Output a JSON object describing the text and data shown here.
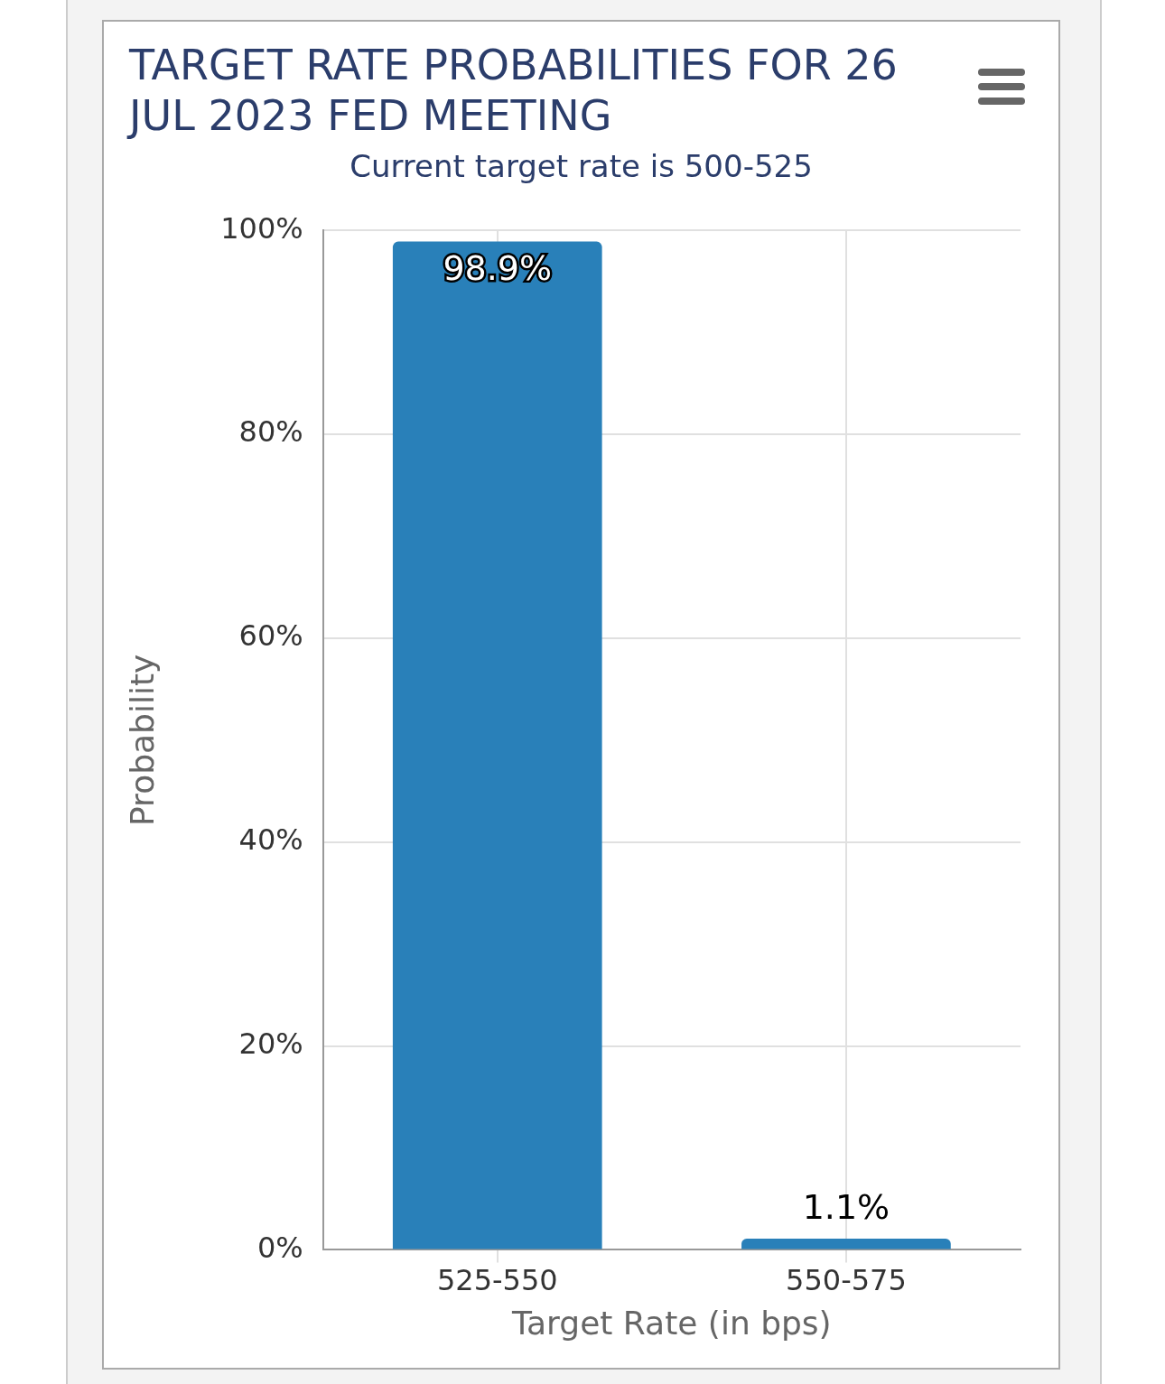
{
  "chart_data": {
    "type": "bar",
    "title": "TARGET RATE PROBABILITIES FOR 26 JUL 2023 FED MEETING",
    "subtitle": "Current target rate is 500-525",
    "xlabel": "Target Rate (in bps)",
    "ylabel": "Probability",
    "categories": [
      "525-550",
      "550-575"
    ],
    "values": [
      98.9,
      1.1
    ],
    "color": "#2980b9",
    "value_labels": [
      "98.9%",
      "1.1%"
    ],
    "ylim": [
      0,
      100
    ],
    "yticks": [
      {
        "value": 0,
        "label": "0%"
      },
      {
        "value": 20,
        "label": "20%"
      },
      {
        "value": 40,
        "label": "40%"
      },
      {
        "value": 60,
        "label": "60%"
      },
      {
        "value": 80,
        "label": "80%"
      },
      {
        "value": 100,
        "label": "100%"
      }
    ],
    "grid": true,
    "legend": false
  }
}
